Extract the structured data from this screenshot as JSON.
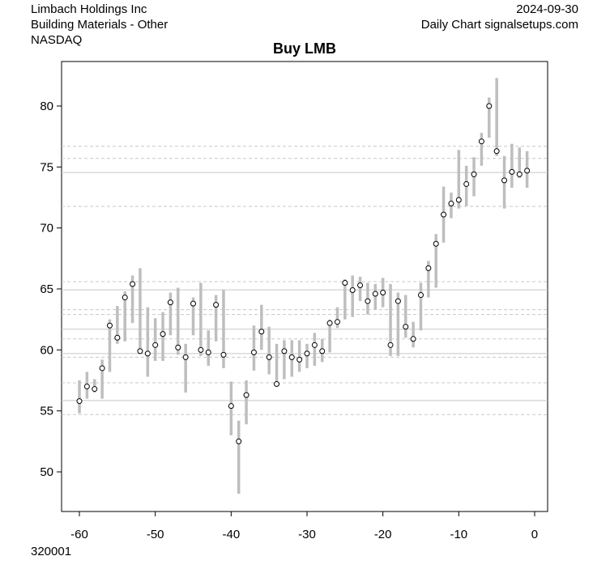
{
  "chart_data": {
    "type": "range",
    "title": "Buy LMB",
    "header_left": [
      "Limbach Holdings Inc",
      "Building Materials - Other",
      "NASDAQ"
    ],
    "header_right": [
      "2024-09-30",
      "Daily Chart signalsetups.com"
    ],
    "footer": "320001",
    "x": [
      -60,
      -59,
      -58,
      -57,
      -56,
      -55,
      -54,
      -53,
      -52,
      -51,
      -50,
      -49,
      -48,
      -47,
      -46,
      -45,
      -44,
      -43,
      -42,
      -41,
      -40,
      -39,
      -38,
      -37,
      -36,
      -35,
      -34,
      -33,
      -32,
      -31,
      -30,
      -29,
      -28,
      -27,
      -26,
      -25,
      -24,
      -23,
      -22,
      -21,
      -20,
      -19,
      -18,
      -17,
      -16,
      -15,
      -14,
      -13,
      -12,
      -11,
      -10,
      -9,
      -8,
      -7,
      -6,
      -5,
      -4,
      -3,
      -2,
      -1
    ],
    "high": [
      57.5,
      58.2,
      57.6,
      59.2,
      62.5,
      63.6,
      64.8,
      66.1,
      66.7,
      63.5,
      62.6,
      63.1,
      64.7,
      65.1,
      60.5,
      64.3,
      65.5,
      61.6,
      64.5,
      64.9,
      57.4,
      54.2,
      57.5,
      62.0,
      63.7,
      61.9,
      60.5,
      60.8,
      60.8,
      60.8,
      60.5,
      61.4,
      60.9,
      62.5,
      63.5,
      65.8,
      66.1,
      66.0,
      65.5,
      65.4,
      65.9,
      65.4,
      64.7,
      64.5,
      62.3,
      65.5,
      67.3,
      69.5,
      73.4,
      72.9,
      76.4,
      75.1,
      75.8,
      77.8,
      80.7,
      82.3,
      75.9,
      76.9,
      76.6,
      76.3
    ],
    "low": [
      54.8,
      56.0,
      56.5,
      56.0,
      58.2,
      60.5,
      60.7,
      62.2,
      59.8,
      57.8,
      59.1,
      59.1,
      61.2,
      59.6,
      56.5,
      61.2,
      59.5,
      58.7,
      60.7,
      58.5,
      53.0,
      48.2,
      53.9,
      58.3,
      60.0,
      58.0,
      57.0,
      57.6,
      57.8,
      58.2,
      58.5,
      58.7,
      59.0,
      59.8,
      61.8,
      62.5,
      62.7,
      64.0,
      62.9,
      63.3,
      63.5,
      59.5,
      59.5,
      61.0,
      60.2,
      61.6,
      64.3,
      65.1,
      68.8,
      70.8,
      71.6,
      71.8,
      72.6,
      75.1,
      77.4,
      75.9,
      71.6,
      73.3,
      74.1,
      73.3
    ],
    "close": [
      55.8,
      57.0,
      56.8,
      58.5,
      62.0,
      61.0,
      64.3,
      65.4,
      59.9,
      59.7,
      60.4,
      61.3,
      63.9,
      60.2,
      59.4,
      63.8,
      60.0,
      59.8,
      63.7,
      59.6,
      55.4,
      52.5,
      56.3,
      59.8,
      61.5,
      59.4,
      57.2,
      59.9,
      59.4,
      59.2,
      59.7,
      60.4,
      59.9,
      62.2,
      62.3,
      65.5,
      64.9,
      65.3,
      64.0,
      64.6,
      64.7,
      60.4,
      64.0,
      61.9,
      60.9,
      64.5,
      66.7,
      68.7,
      71.1,
      72.0,
      72.3,
      73.6,
      74.4,
      77.1,
      80.0,
      76.3,
      73.9,
      74.6,
      74.4,
      74.7
    ],
    "bar_color": "#bebebe",
    "xlim": [
      -62.35,
      1.71
    ],
    "ylim": [
      46.75,
      83.65
    ],
    "xticks": [
      -60,
      -50,
      -40,
      -30,
      -20,
      -10,
      0
    ],
    "yticks": [
      50,
      55,
      60,
      65,
      70,
      75,
      80
    ],
    "solid_levels": [
      74.55,
      64.93,
      61.7,
      59.7,
      55.85
    ],
    "dashed_levels": [
      76.7,
      75.7,
      71.77,
      65.6,
      63.3,
      62.9,
      60.9,
      59.4,
      57.3,
      54.7
    ]
  }
}
